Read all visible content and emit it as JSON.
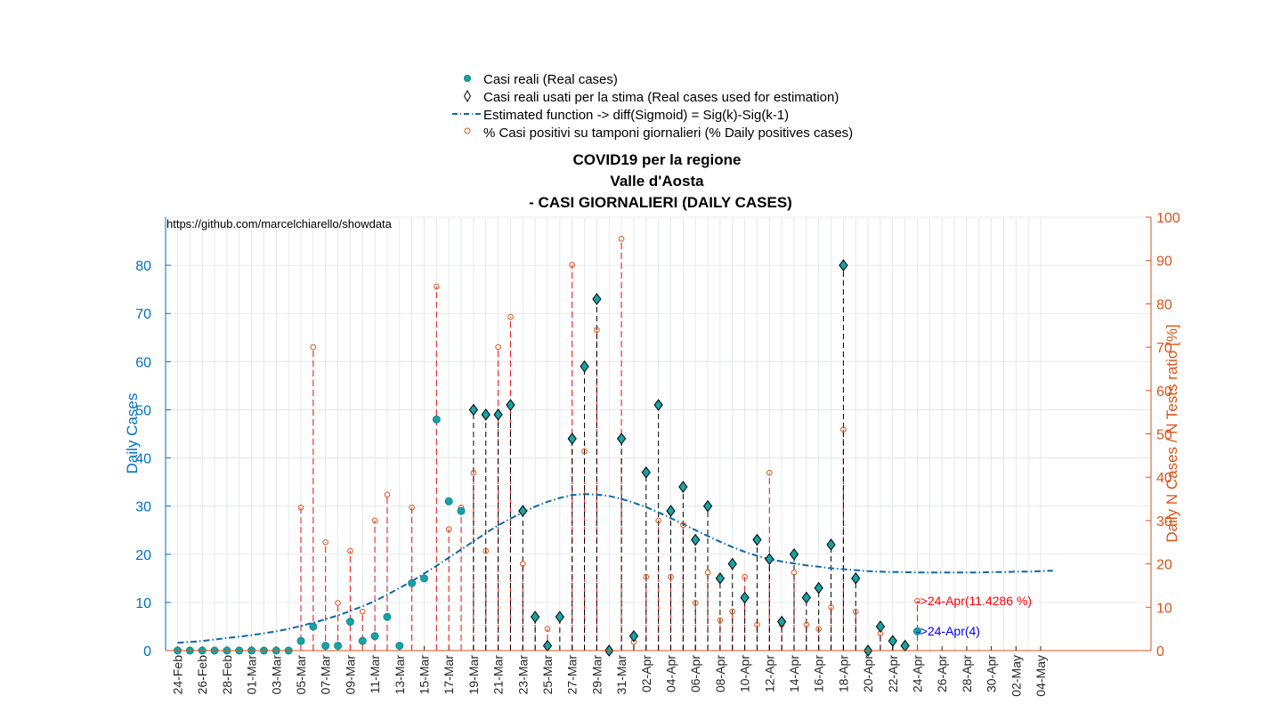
{
  "chart_data": {
    "type": "scatter",
    "title": [
      "COVID19 per la regione",
      "Valle d'Aosta",
      "- CASI GIORNALIERI (DAILY CASES)"
    ],
    "ylabel": "Daily Cases",
    "ylabel_right": "Daily N Cases / N Tests ratio [%]",
    "ylim": [
      0,
      90
    ],
    "ylim_right": [
      0,
      100
    ],
    "yticks": [
      "0",
      "10",
      "20",
      "30",
      "40",
      "50",
      "60",
      "70",
      "80"
    ],
    "yticks_right": [
      "0",
      "10",
      "20",
      "30",
      "40",
      "50",
      "60",
      "70",
      "80",
      "90",
      "100"
    ],
    "xticks": [
      "24-Feb",
      "26-Feb",
      "28-Feb",
      "01-Mar",
      "03-Mar",
      "05-Mar",
      "07-Mar",
      "09-Mar",
      "11-Mar",
      "13-Mar",
      "15-Mar",
      "17-Mar",
      "19-Mar",
      "21-Mar",
      "23-Mar",
      "25-Mar",
      "27-Mar",
      "29-Mar",
      "31-Mar",
      "02-Apr",
      "04-Apr",
      "06-Apr",
      "08-Apr",
      "10-Apr",
      "12-Apr",
      "14-Apr",
      "16-Apr",
      "18-Apr",
      "20-Apr",
      "22-Apr",
      "24-Apr",
      "26-Apr",
      "28-Apr",
      "30-Apr",
      "02-May",
      "04-May"
    ],
    "grid": true,
    "legend_position": "top",
    "legend": [
      "Casi reali (Real cases)",
      "Casi reali usati per la stima (Real cases used for estimation)",
      "Estimated function -> diff(Sigmoid) = Sig(k)-Sig(k-1)",
      "% Casi positivi su tamponi giornalieri (% Daily positives cases)"
    ],
    "source_note": "https://github.com/marcelchiarello/showdata",
    "annotation_ratio": "->24-Apr(11.4286 %)",
    "annotation_cases": "->24-Apr(4)",
    "x_start": "24-Feb",
    "real_cases": [
      0,
      0,
      0,
      0,
      0,
      0,
      0,
      0,
      0,
      0,
      2,
      5,
      1,
      1,
      6,
      2,
      3,
      7,
      1,
      14,
      15,
      48,
      31,
      29,
      50,
      49,
      49,
      51,
      29,
      7,
      1,
      7,
      44,
      59,
      73,
      0,
      44,
      3,
      37,
      51,
      29,
      34,
      23,
      30,
      15,
      18,
      11,
      23,
      19,
      6,
      20,
      11,
      13,
      22,
      80,
      15,
      0,
      5,
      2,
      1,
      4
    ],
    "estimation_days": [
      "19-Mar",
      "20-Mar",
      "21-Mar",
      "22-Mar",
      "23-Mar",
      "24-Mar",
      "25-Mar",
      "26-Mar",
      "27-Mar",
      "28-Mar",
      "29-Mar",
      "30-Mar",
      "31-Mar",
      "01-Apr",
      "02-Apr",
      "03-Apr",
      "04-Apr",
      "05-Apr",
      "06-Apr",
      "07-Apr",
      "08-Apr",
      "09-Apr",
      "10-Apr",
      "11-Apr",
      "12-Apr",
      "13-Apr",
      "14-Apr",
      "15-Apr",
      "16-Apr",
      "17-Apr",
      "18-Apr",
      "19-Apr",
      "20-Apr",
      "21-Apr",
      "22-Apr",
      "23-Apr"
    ],
    "estimated_function": [
      1.6,
      1.8,
      2.0,
      2.3,
      2.6,
      2.9,
      3.2,
      3.6,
      4.0,
      4.5,
      5.1,
      5.8,
      6.5,
      7.3,
      8.2,
      9.2,
      10.3,
      11.6,
      13.0,
      14.4,
      16.0,
      17.6,
      19.3,
      21.0,
      22.7,
      24.4,
      26.0,
      27.4,
      28.7,
      29.9,
      30.9,
      31.7,
      32.3,
      32.5,
      32.4,
      32.1,
      31.5,
      30.7,
      29.8,
      28.7,
      27.5,
      26.3,
      25.0,
      23.8,
      22.6,
      21.5,
      20.5,
      19.7,
      19.0,
      18.5,
      18.1,
      17.7,
      17.4,
      17.1,
      16.9,
      16.7,
      16.5,
      16.4,
      16.3,
      16.3,
      16.2,
      16.2,
      16.2,
      16.2,
      16.2,
      16.2,
      16.3,
      16.3,
      16.4,
      16.4,
      16.5,
      16.6
    ],
    "positive_ratio_pct": [
      null,
      null,
      null,
      null,
      null,
      null,
      null,
      null,
      null,
      null,
      33,
      70,
      25,
      11,
      23,
      9,
      30,
      36,
      1,
      33,
      null,
      84,
      28,
      33,
      41,
      23,
      70,
      77,
      20,
      8,
      5,
      null,
      89,
      46,
      74,
      null,
      95,
      2,
      17,
      30,
      17,
      29,
      11,
      18,
      7,
      9,
      17,
      6,
      41,
      6,
      18,
      6,
      5,
      10,
      51,
      9,
      0,
      4,
      2,
      1,
      11.4286
    ]
  }
}
